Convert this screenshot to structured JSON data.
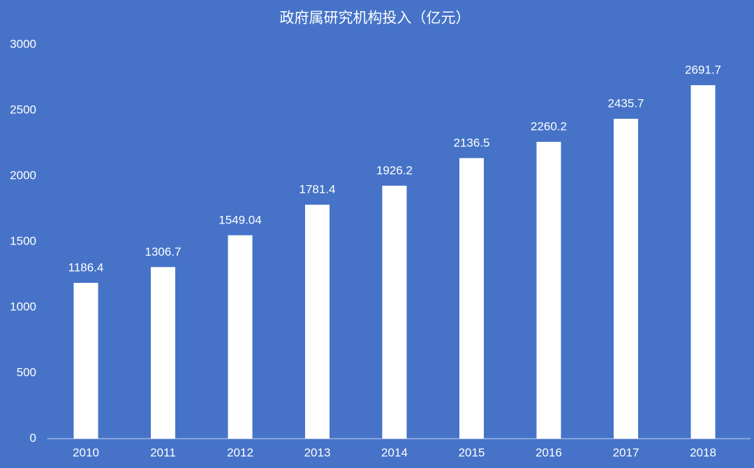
{
  "chart_data": {
    "type": "bar",
    "title": "政府属研究机构投入（亿元）",
    "categories": [
      "2010",
      "2011",
      "2012",
      "2013",
      "2014",
      "2015",
      "2016",
      "2017",
      "2018"
    ],
    "values": [
      1186.4,
      1306.7,
      1549.04,
      1781.4,
      1926.2,
      2136.5,
      2260.2,
      2435.7,
      2691.7
    ],
    "color": "#ffffff",
    "background": "#4673c8",
    "ylim": [
      0,
      3000
    ],
    "yticks": [
      0,
      500,
      1000,
      1500,
      2000,
      2500,
      3000
    ],
    "grid": false
  }
}
